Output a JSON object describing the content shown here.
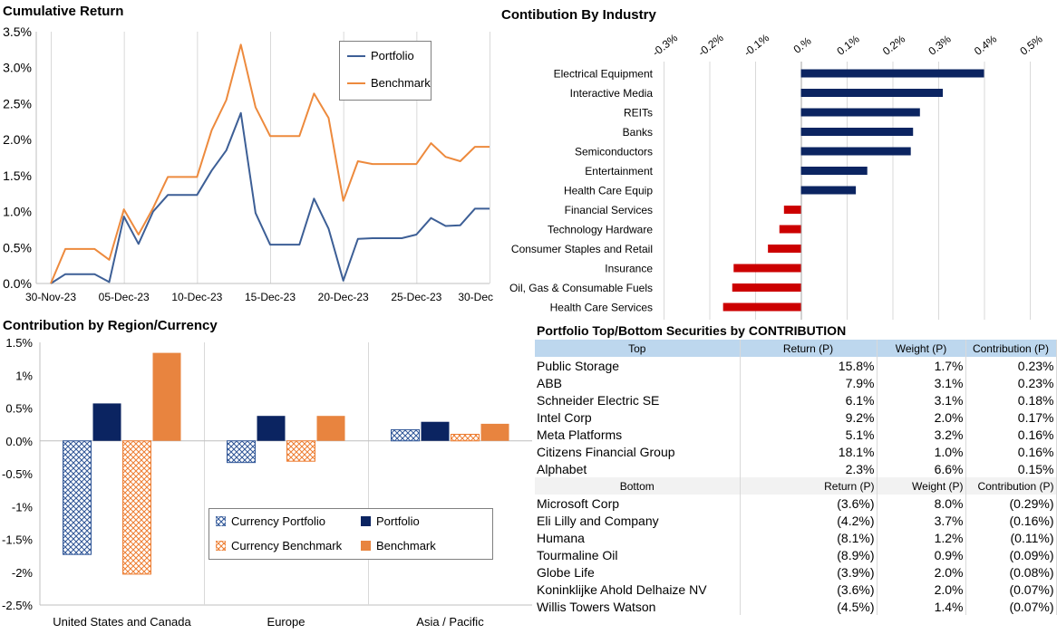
{
  "chart_data": [
    {
      "type": "line",
      "title": "Cumulative Return",
      "x": [
        "30-Nov-23",
        "01-Dec-23",
        "02-Dec-23",
        "03-Dec-23",
        "04-Dec-23",
        "05-Dec-23",
        "06-Dec-23",
        "07-Dec-23",
        "08-Dec-23",
        "09-Dec-23",
        "10-Dec-23",
        "11-Dec-23",
        "12-Dec-23",
        "13-Dec-23",
        "14-Dec-23",
        "15-Dec-23",
        "16-Dec-23",
        "17-Dec-23",
        "18-Dec-23",
        "19-Dec-23",
        "20-Dec-23",
        "21-Dec-23",
        "22-Dec-23",
        "23-Dec-23",
        "24-Dec-23",
        "25-Dec-23",
        "26-Dec-23",
        "27-Dec-23",
        "28-Dec-23",
        "29-Dec-23",
        "30-Dec-23"
      ],
      "x_tick_labels": [
        "30-Nov-23",
        "05-Dec-23",
        "10-Dec-23",
        "15-Dec-23",
        "20-Dec-23",
        "25-Dec-23",
        "30-Dec"
      ],
      "y_tick_labels": [
        "3.5%",
        "3.0%",
        "2.5%",
        "2.0%",
        "1.5%",
        "1.0%",
        "0.5%",
        "0.0%"
      ],
      "ylim": [
        0,
        3.5
      ],
      "grid": "vertical",
      "legend_position": "top-right",
      "series": [
        {
          "name": "Portfolio",
          "color": "#3d5f96",
          "values": [
            0.0,
            0.13,
            0.13,
            0.13,
            0.02,
            0.93,
            0.55,
            1.0,
            1.23,
            1.23,
            1.23,
            1.57,
            1.85,
            2.37,
            0.98,
            0.54,
            0.54,
            0.54,
            1.18,
            0.76,
            0.04,
            0.62,
            0.63,
            0.63,
            0.63,
            0.68,
            0.91,
            0.8,
            0.81,
            1.04,
            1.04
          ]
        },
        {
          "name": "Benchmark",
          "color": "#ed8a3d",
          "values": [
            0.0,
            0.48,
            0.48,
            0.48,
            0.33,
            1.03,
            0.68,
            1.05,
            1.48,
            1.48,
            1.48,
            2.13,
            2.55,
            3.32,
            2.45,
            2.05,
            2.05,
            2.05,
            2.64,
            2.3,
            1.15,
            1.7,
            1.66,
            1.66,
            1.66,
            1.66,
            1.95,
            1.76,
            1.7,
            1.9,
            1.9
          ]
        }
      ]
    },
    {
      "type": "bar",
      "title": "Contibution By Industry",
      "orientation": "horizontal",
      "categories": [
        "Electrical Equipment",
        "Interactive Media",
        "REITs",
        "Banks",
        "Semiconductors",
        "Entertainment",
        "Health Care Equip",
        "Financial Services",
        "Technology Hardware",
        "Consumer Staples and Retail",
        "Insurance",
        "Oil, Gas & Consumable Fuels",
        "Health Care Services"
      ],
      "values": [
        0.4,
        0.31,
        0.26,
        0.245,
        0.24,
        0.145,
        0.12,
        -0.037,
        -0.047,
        -0.072,
        -0.147,
        -0.15,
        -0.17
      ],
      "tick_labels": [
        "-0.3%",
        "-0.2%",
        "-0.1%",
        "0.%",
        "0.1%",
        "0.2%",
        "0.3%",
        "0.4%",
        "0.5%"
      ],
      "xlim": [
        -0.3,
        0.55
      ],
      "grid": "vertical",
      "positive_color": "#0b2461",
      "negative_color": "#cc0000"
    },
    {
      "type": "bar",
      "title": "Contribution by Region/Currency",
      "categories": [
        "United States and Canada",
        "Europe",
        "Asia / Pacific"
      ],
      "y_tick_labels": [
        "1.5%",
        "1%",
        "0.5%",
        "0.0%",
        "-0.5%",
        "-1%",
        "-1.5%",
        "-2%",
        "-2.5%"
      ],
      "ylim": [
        -2.5,
        1.5
      ],
      "legend_position": "bottom-center",
      "series": [
        {
          "name": "Currency Portfolio",
          "color": "#2e5597",
          "pattern": "hatched",
          "values": [
            -1.73,
            -0.33,
            0.17
          ]
        },
        {
          "name": "Portfolio",
          "color": "#0b2461",
          "pattern": "solid",
          "values": [
            0.57,
            0.38,
            0.29
          ]
        },
        {
          "name": "Currency Benchmark",
          "color": "#ed7d31",
          "pattern": "hatched",
          "values": [
            -2.03,
            -0.31,
            0.1
          ]
        },
        {
          "name": "Benchmark",
          "color": "#e8843f",
          "pattern": "solid",
          "values": [
            1.34,
            0.38,
            0.26
          ]
        }
      ]
    },
    {
      "type": "table",
      "title": "Portfolio Top/Bottom Securities by CONTRIBUTION",
      "top_header": [
        "Top",
        "Return (P)",
        "Weight (P)",
        "Contribution (P)"
      ],
      "top_rows": [
        [
          "Public Storage",
          "15.8%",
          "1.7%",
          "0.23%"
        ],
        [
          "ABB",
          "7.9%",
          "3.1%",
          "0.23%"
        ],
        [
          "Schneider Electric SE",
          "6.1%",
          "3.1%",
          "0.18%"
        ],
        [
          "Intel Corp",
          "9.2%",
          "2.0%",
          "0.17%"
        ],
        [
          "Meta Platforms",
          "5.1%",
          "3.2%",
          "0.16%"
        ],
        [
          "Citizens Financial Group",
          "18.1%",
          "1.0%",
          "0.16%"
        ],
        [
          "Alphabet",
          "2.3%",
          "6.6%",
          "0.15%"
        ]
      ],
      "bottom_header": [
        "Bottom",
        "Return (P)",
        "Weight (P)",
        "Contribution (P)"
      ],
      "bottom_rows": [
        [
          "Microsoft Corp",
          "(3.6%)",
          "8.0%",
          "(0.29%)"
        ],
        [
          "Eli Lilly and Company",
          "(4.2%)",
          "3.7%",
          "(0.16%)"
        ],
        [
          "Humana",
          "(8.1%)",
          "1.2%",
          "(0.11%)"
        ],
        [
          "Tourmaline Oil",
          "(8.9%)",
          "0.9%",
          "(0.09%)"
        ],
        [
          "Globe Life",
          "(3.9%)",
          "2.0%",
          "(0.08%)"
        ],
        [
          "Koninklijke Ahold Delhaize NV",
          "(3.6%)",
          "2.0%",
          "(0.07%)"
        ],
        [
          "Willis Towers Watson",
          "(4.5%)",
          "1.4%",
          "(0.07%)"
        ]
      ]
    }
  ]
}
